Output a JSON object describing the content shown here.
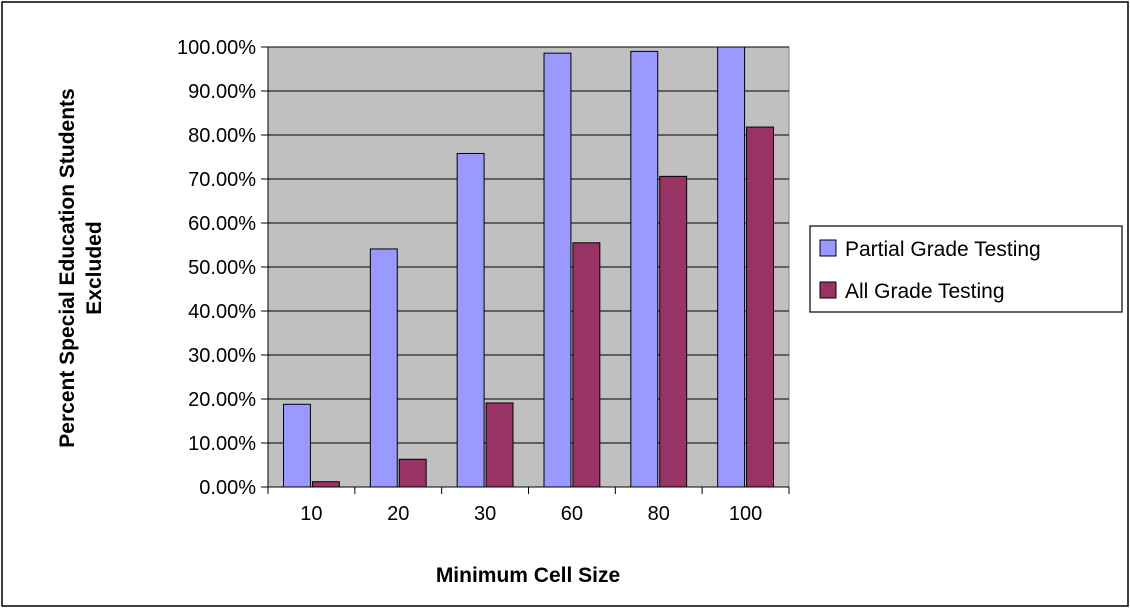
{
  "chart_data": {
    "type": "bar",
    "categories": [
      "10",
      "20",
      "30",
      "60",
      "80",
      "100"
    ],
    "series": [
      {
        "name": "Partial Grade Testing",
        "values": [
          18.8,
          54.1,
          75.8,
          98.6,
          99.0,
          100.0
        ],
        "color": "#9999ff"
      },
      {
        "name": "All Grade Testing",
        "values": [
          1.2,
          6.3,
          19.1,
          55.5,
          70.6,
          81.8
        ],
        "color": "#993366"
      }
    ],
    "xlabel": "Minimum Cell Size",
    "ylabel": "Percent Special Education Students Excluded",
    "ylabel_lines": [
      "Percent Special Education Students",
      "Excluded"
    ],
    "ylim": [
      0,
      100
    ],
    "yticks": [
      0,
      10,
      20,
      30,
      40,
      50,
      60,
      70,
      80,
      90,
      100
    ],
    "ytick_labels": [
      "0.00%",
      "10.00%",
      "20.00%",
      "30.00%",
      "40.00%",
      "50.00%",
      "60.00%",
      "70.00%",
      "80.00%",
      "90.00%",
      "100.00%"
    ],
    "grid": true,
    "legend_position": "right",
    "plot_background": "#c0c0c0"
  }
}
